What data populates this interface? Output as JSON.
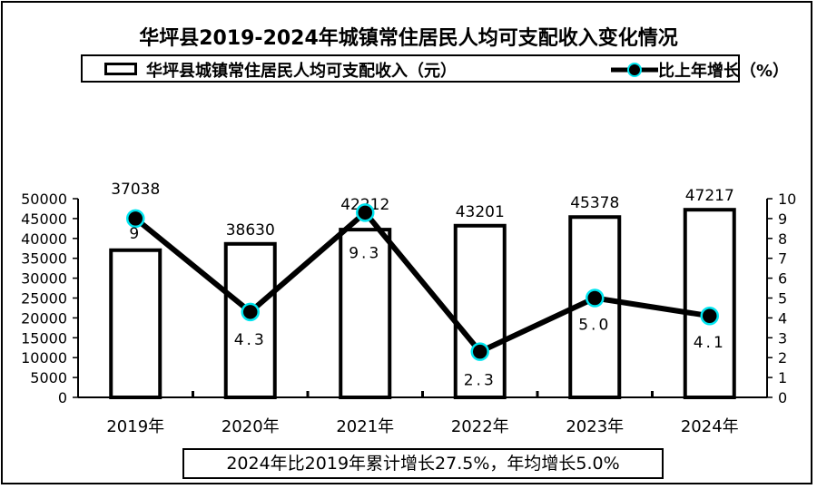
{
  "title": "华坪县2019-2024年城镇常住居民人均可支配收入变化情况",
  "legend": {
    "bar_label": "华坪县城镇常住居民人均可支配收入（元）",
    "line_label": "比上年增长（%）"
  },
  "note": "2024年比2019年累计增长27.5%，年均增长5.0%",
  "colors": {
    "bar_fill": "#ffffff",
    "bar_stroke": "#000000",
    "line": "#000000",
    "marker_fill": "#000000",
    "marker_ring": "#00e5f0"
  },
  "chart_data": {
    "type": "bar",
    "categories": [
      "2019年",
      "2020年",
      "2021年",
      "2022年",
      "2023年",
      "2024年"
    ],
    "series": [
      {
        "name": "华坪县城镇常住居民人均可支配收入（元）",
        "type": "bar",
        "axis": "left",
        "values": [
          37038,
          38630,
          42212,
          43201,
          45378,
          47217
        ],
        "labels": [
          "37038",
          "38630",
          "42212",
          "43201",
          "45378",
          "47217"
        ]
      },
      {
        "name": "比上年增长（%）",
        "type": "line",
        "axis": "right",
        "values": [
          9,
          4.3,
          9.3,
          2.3,
          5.0,
          4.1
        ],
        "labels": [
          "9",
          "4.3",
          "9.3",
          "2.3",
          "5.0",
          "4.1"
        ]
      }
    ],
    "y_left": {
      "lim": [
        0,
        50000
      ],
      "ticks": [
        "0",
        "5000",
        "10000",
        "15000",
        "20000",
        "25000",
        "30000",
        "35000",
        "40000",
        "45000",
        "50000"
      ]
    },
    "y_right": {
      "lim": [
        0,
        10
      ],
      "ticks": [
        "0",
        "1",
        "2",
        "3",
        "4",
        "5",
        "6",
        "7",
        "8",
        "9",
        "10"
      ]
    },
    "grid": false,
    "legend_position": "top"
  }
}
